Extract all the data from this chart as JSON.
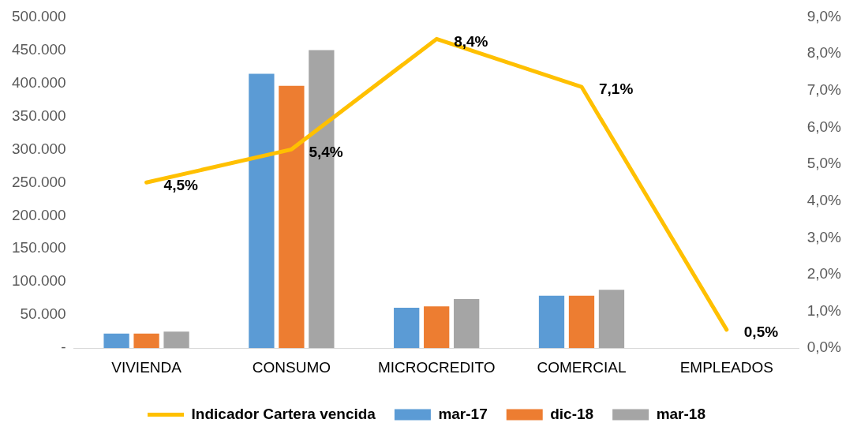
{
  "chart_data": {
    "type": "bar",
    "categories": [
      "VIVIENDA",
      "CONSUMO",
      "MICROCREDITO",
      "COMERCIAL",
      "EMPLEADOS"
    ],
    "series": [
      {
        "name": "mar-17",
        "color": "#5b9bd5",
        "values": [
          22000,
          414000,
          61000,
          79000,
          0
        ]
      },
      {
        "name": "dic-18",
        "color": "#ed7d31",
        "values": [
          22000,
          396000,
          63000,
          79000,
          0
        ]
      },
      {
        "name": "mar-18",
        "color": "#a5a5a5",
        "values": [
          25000,
          450000,
          74000,
          88000,
          0
        ]
      },
      {
        "name": "Indicador Cartera vencida",
        "type": "line",
        "axis": "y2",
        "color": "#ffc000",
        "values": [
          4.5,
          5.4,
          8.4,
          7.1,
          0.5
        ],
        "value_labels": [
          "4,5%",
          "5,4%",
          "8,4%",
          "7,1%",
          "0,5%"
        ]
      }
    ],
    "ylim": [
      0,
      500000
    ],
    "yticks": [
      {
        "value": 0,
        "label": "-"
      },
      {
        "value": 50000,
        "label": "50.000"
      },
      {
        "value": 100000,
        "label": "100.000"
      },
      {
        "value": 150000,
        "label": "150.000"
      },
      {
        "value": 200000,
        "label": "200.000"
      },
      {
        "value": 250000,
        "label": "250.000"
      },
      {
        "value": 300000,
        "label": "300.000"
      },
      {
        "value": 350000,
        "label": "350.000"
      },
      {
        "value": 400000,
        "label": "400.000"
      },
      {
        "value": 450000,
        "label": "450.000"
      },
      {
        "value": 500000,
        "label": "500.000"
      }
    ],
    "y2lim": [
      0,
      9
    ],
    "y2ticks": [
      {
        "value": 0,
        "label": "0,0%"
      },
      {
        "value": 1,
        "label": "1,0%"
      },
      {
        "value": 2,
        "label": "2,0%"
      },
      {
        "value": 3,
        "label": "3,0%"
      },
      {
        "value": 4,
        "label": "4,0%"
      },
      {
        "value": 5,
        "label": "5,0%"
      },
      {
        "value": 6,
        "label": "6,0%"
      },
      {
        "value": 7,
        "label": "7,0%"
      },
      {
        "value": 8,
        "label": "8,0%"
      },
      {
        "value": 9,
        "label": "9,0%"
      }
    ],
    "grid": false,
    "legend": "bottom",
    "marker": "none"
  }
}
